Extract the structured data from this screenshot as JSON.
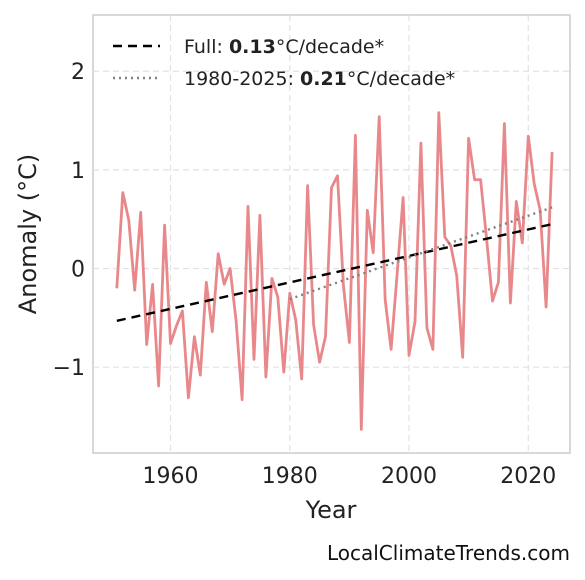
{
  "chart_data": {
    "type": "line",
    "xlabel": "Year",
    "ylabel": "Anomaly (°C)",
    "xlim": [
      1947,
      2027
    ],
    "ylim": [
      -1.87,
      2.57
    ],
    "xticks": [
      1960,
      1980,
      2000,
      2020
    ],
    "yticks": [
      -1,
      0,
      1,
      2
    ],
    "ytick_labels": [
      "−1",
      "0",
      "1",
      "2"
    ],
    "grid": true,
    "legend_position": "top-left",
    "series": [
      {
        "color": "#e8888b",
        "x": [
          1951,
          1952,
          1953,
          1954,
          1955,
          1956,
          1957,
          1958,
          1959,
          1960,
          1961,
          1962,
          1963,
          1964,
          1965,
          1966,
          1967,
          1968,
          1969,
          1970,
          1971,
          1972,
          1973,
          1974,
          1975,
          1976,
          1977,
          1978,
          1979,
          1980,
          1981,
          1982,
          1983,
          1984,
          1985,
          1986,
          1987,
          1988,
          1989,
          1990,
          1991,
          1992,
          1993,
          1994,
          1995,
          1996,
          1997,
          1998,
          1999,
          2000,
          2001,
          2002,
          2003,
          2004,
          2005,
          2006,
          2007,
          2008,
          2009,
          2010,
          2011,
          2012,
          2013,
          2014,
          2015,
          2016,
          2017,
          2018,
          2019,
          2020,
          2021,
          2022,
          2023,
          2024
        ],
        "values": [
          -0.2,
          0.77,
          0.49,
          -0.22,
          0.57,
          -0.77,
          -0.16,
          -1.19,
          0.44,
          -0.76,
          -0.58,
          -0.43,
          -1.31,
          -0.69,
          -1.08,
          -0.14,
          -0.64,
          0.15,
          -0.16,
          0.0,
          -0.53,
          -1.33,
          0.63,
          -0.92,
          0.54,
          -1.1,
          -0.1,
          -0.29,
          -1.05,
          -0.25,
          -0.52,
          -1.12,
          0.84,
          -0.57,
          -0.95,
          -0.69,
          0.82,
          0.94,
          -0.17,
          -0.75,
          1.35,
          -1.63,
          0.59,
          0.16,
          1.54,
          -0.32,
          -0.82,
          -0.06,
          0.72,
          -0.88,
          -0.54,
          1.27,
          -0.6,
          -0.82,
          1.58,
          0.32,
          0.23,
          -0.07,
          -0.9,
          1.32,
          0.9,
          0.9,
          0.31,
          -0.33,
          -0.14,
          1.47,
          -0.35,
          0.68,
          0.26,
          1.34,
          0.86,
          0.59,
          -0.39,
          1.18
        ]
      }
    ],
    "trend_lines": [
      {
        "style": "dashed",
        "color": "#000000",
        "x": [
          1951,
          2024
        ],
        "y": [
          -0.53,
          0.45
        ],
        "legend_prefix": "Full: ",
        "legend_value": "0.13",
        "legend_suffix": "°C/decade*"
      },
      {
        "style": "dotted",
        "color": "#808080",
        "x": [
          1980,
          2024
        ],
        "y": [
          -0.31,
          0.62
        ],
        "legend_prefix": "1980-2025: ",
        "legend_value": "0.21",
        "legend_suffix": "°C/decade*"
      }
    ],
    "watermark": "LocalClimateTrends.com"
  }
}
